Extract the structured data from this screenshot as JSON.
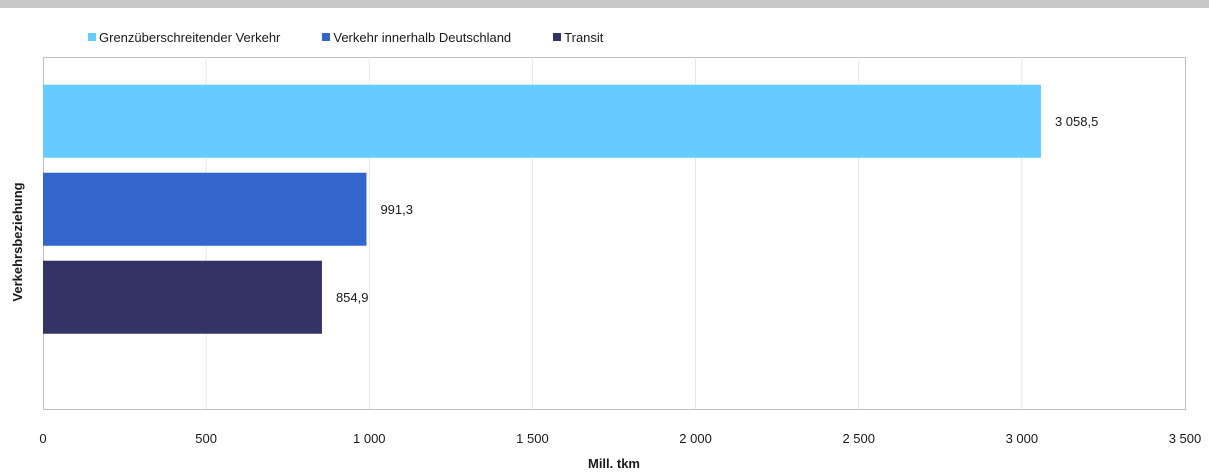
{
  "chart_data": {
    "type": "bar",
    "orientation": "horizontal",
    "categories": [
      "Grenzüberschreitender Verkehr",
      "Verkehr innerhalb Deutschland",
      "Transit"
    ],
    "values": [
      3058.5,
      991.3,
      854.9
    ],
    "value_labels": [
      "3 058,5",
      "991,3",
      "854,9"
    ],
    "colors": [
      "#66ccff",
      "#3366cc",
      "#333366"
    ],
    "xlabel": "Mill. tkm",
    "ylabel": "Verkehrsbeziehung",
    "xlim": [
      0,
      3500
    ],
    "x_ticks": [
      0,
      500,
      1000,
      1500,
      2000,
      2500,
      3000,
      3500
    ],
    "x_tick_labels": [
      "0",
      "500",
      "1 000",
      "1 500",
      "2 000",
      "2 500",
      "3 000",
      "3 500"
    ],
    "grid": true,
    "legend_position": "top-left"
  },
  "legend": {
    "items": [
      {
        "label": "Grenzüberschreitender Verkehr",
        "color": "#66ccff"
      },
      {
        "label": "Verkehr innerhalb Deutschland",
        "color": "#3366cc"
      },
      {
        "label": "Transit",
        "color": "#333366"
      }
    ]
  }
}
